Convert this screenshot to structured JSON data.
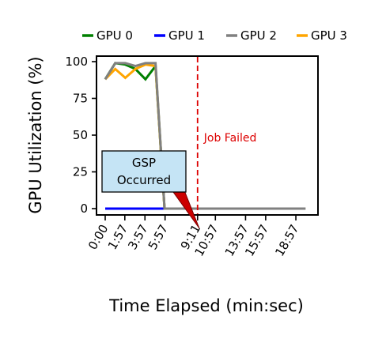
{
  "chart_data": {
    "type": "line",
    "title": "",
    "xlabel": "Time Elapsed (min:sec)",
    "ylabel": "GPU Utilization (%)",
    "ylim": [
      0,
      100
    ],
    "yticks": [
      0,
      25,
      50,
      75,
      100
    ],
    "xlim": [
      0,
      19.9
    ],
    "x_tick_values": [
      0,
      1.95,
      3.95,
      5.95,
      9.18,
      10.95,
      13.95,
      15.95,
      18.95
    ],
    "x_tick_labels": [
      "0:00",
      "1:57",
      "3:57",
      "5:57",
      "9:11",
      "10:57",
      "13:57",
      "15:57",
      "18:57"
    ],
    "grid": false,
    "legend_position": "top",
    "series": [
      {
        "name": "GPU 0",
        "color": "#008000",
        "x": [
          0,
          1,
          2,
          3,
          4,
          5,
          5.9,
          19.9
        ],
        "y": [
          88,
          99,
          98,
          95,
          88,
          97,
          0,
          0
        ]
      },
      {
        "name": "GPU 1",
        "color": "#0000ff",
        "x": [
          0,
          5.9,
          19.9
        ],
        "y": [
          0,
          0,
          0
        ]
      },
      {
        "name": "GPU 3",
        "color": "#ffa500",
        "x": [
          0,
          1,
          2,
          3,
          4,
          5,
          5.9,
          19.9
        ],
        "y": [
          88,
          95,
          89,
          95,
          98,
          97,
          0,
          0
        ]
      },
      {
        "name": "GPU 2",
        "color": "#808080",
        "x": [
          0,
          1,
          2,
          3,
          4,
          5,
          5.9,
          19.9
        ],
        "y": [
          88,
          99,
          99,
          97,
          99,
          99,
          0,
          0
        ]
      }
    ],
    "annotations": [
      {
        "id": "job_failed",
        "text": "Job Failed",
        "x": 9.18,
        "color": "#dd0000"
      },
      {
        "id": "gsp",
        "text_line1": "GSP",
        "text_line2": "Occurred",
        "target_x": 9.18,
        "target_y": 0
      }
    ]
  }
}
